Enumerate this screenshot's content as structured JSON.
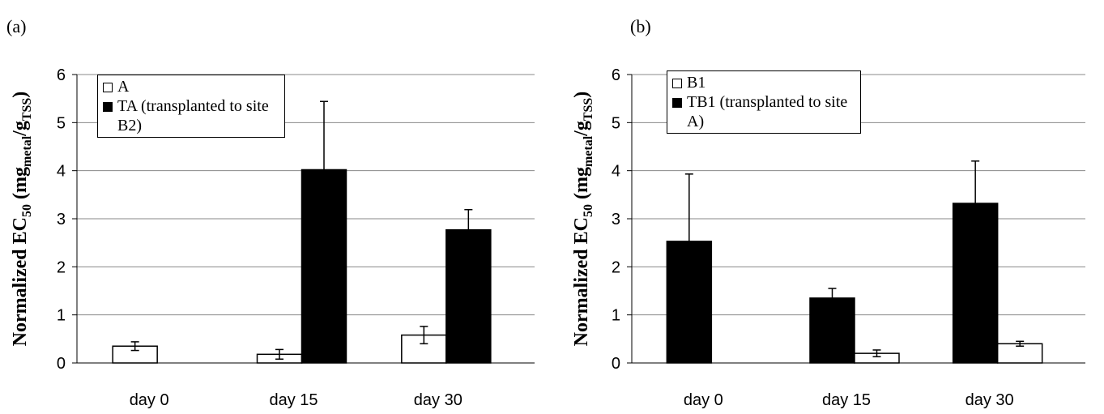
{
  "chart_data": [
    {
      "type": "bar",
      "panel_label": "(a)",
      "ylabel": [
        "Normalized EC",
        "50",
        "  (mg",
        "metal",
        "/g",
        "TSS",
        ")"
      ],
      "categories": [
        "day 0",
        "day 15",
        "day 30"
      ],
      "series": [
        {
          "name": "A",
          "color": "#ffffff",
          "values": [
            0.35,
            0.18,
            0.58
          ],
          "errors": [
            0.09,
            0.1,
            0.18
          ]
        },
        {
          "name": "TA (transplanted to site B2)",
          "color": "#000000",
          "values": [
            null,
            4.02,
            2.77
          ],
          "errors": [
            null,
            1.42,
            0.42
          ]
        }
      ],
      "ylim": [
        0,
        6
      ],
      "yticks": [
        0,
        1,
        2,
        3,
        4,
        5,
        6
      ],
      "grid": true,
      "legend": "upper left",
      "legend_order": "normal"
    },
    {
      "type": "bar",
      "panel_label": "(b)",
      "ylabel": [
        "Normalized EC",
        "50",
        "  (mg",
        "metal",
        "/g",
        "TSS",
        ")"
      ],
      "categories": [
        "day 0",
        "day 15",
        "day 30"
      ],
      "series": [
        {
          "name": "TB1 (transplanted to site A)",
          "color": "#000000",
          "values": [
            2.53,
            1.35,
            3.32
          ],
          "errors": [
            1.4,
            0.2,
            0.88
          ]
        },
        {
          "name": "B1",
          "color": "#ffffff",
          "values": [
            null,
            0.2,
            0.4
          ],
          "errors": [
            null,
            0.07,
            0.05
          ]
        }
      ],
      "ylim": [
        0,
        6
      ],
      "yticks": [
        0,
        1,
        2,
        3,
        4,
        5,
        6
      ],
      "grid": true,
      "legend": "upper left",
      "legend_order": "reversed"
    }
  ]
}
